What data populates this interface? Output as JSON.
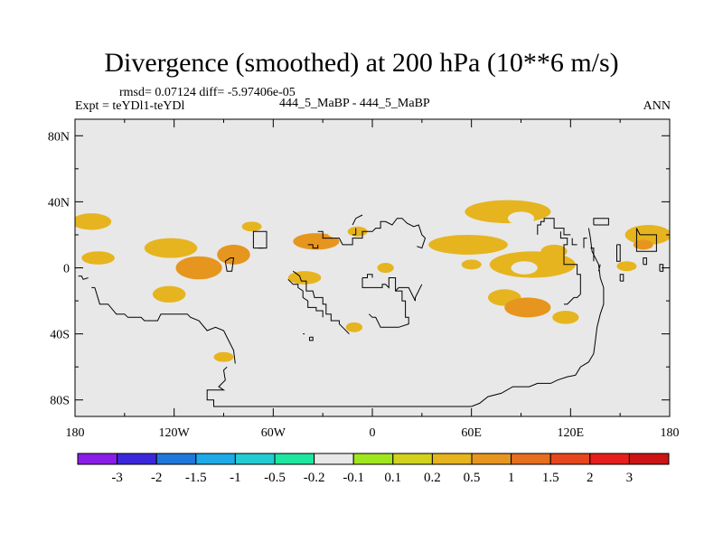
{
  "chart_data": {
    "type": "heatmap",
    "title": "Divergence (smoothed) at 200 hPa (10**6 m/s)",
    "stats_text": "rmsd= 0.07124 diff= -5.97406e-05",
    "experiment_label": "Expt = teYDl1-teYDl",
    "difference_label": "444_5_MaBP - 444_5_MaBP",
    "season_label": "ANN",
    "xlim": [
      -180,
      180
    ],
    "ylim": [
      -90,
      90
    ],
    "x_ticks": [
      {
        "value": -180,
        "label": "180"
      },
      {
        "value": -120,
        "label": "120W"
      },
      {
        "value": -60,
        "label": "60W"
      },
      {
        "value": 0,
        "label": "0"
      },
      {
        "value": 60,
        "label": "60E"
      },
      {
        "value": 120,
        "label": "120E"
      },
      {
        "value": 180,
        "label": "180"
      }
    ],
    "y_ticks": [
      {
        "value": 80,
        "label": "80N"
      },
      {
        "value": 40,
        "label": "40N"
      },
      {
        "value": 0,
        "label": "0"
      },
      {
        "value": -40,
        "label": "40S"
      },
      {
        "value": -80,
        "label": "80S"
      }
    ],
    "colorbar": {
      "labels": [
        "-3",
        "-2",
        "-1.5",
        "-1",
        "-0.5",
        "-0.2",
        "-0.1",
        "0.1",
        "0.2",
        "0.5",
        "1",
        "1.5",
        "2",
        "3"
      ],
      "colors": [
        "#8a1ee6",
        "#3c28dc",
        "#1e78dc",
        "#1eaae6",
        "#22ccd2",
        "#1ee6a0",
        "#e8e8e8",
        "#a0e61e",
        "#d2d21e",
        "#e6b41e",
        "#e6961e",
        "#e66e1e",
        "#e6461e",
        "#e61e1e",
        "#cc1414"
      ]
    },
    "background_color": "#e8e8e8",
    "anomalies": [
      {
        "lon": -170,
        "lat": 28,
        "rx": 12,
        "ry": 5,
        "value": 0.3
      },
      {
        "lon": -166,
        "lat": 6,
        "rx": 10,
        "ry": 4,
        "value": 0.3
      },
      {
        "lon": -163,
        "lat": 14,
        "rx": 6,
        "ry": 3,
        "value": -0.15
      },
      {
        "lon": -146,
        "lat": 26,
        "rx": 4,
        "ry": 3,
        "value": -0.15
      },
      {
        "lon": -122,
        "lat": 12,
        "rx": 16,
        "ry": 6,
        "value": 0.3
      },
      {
        "lon": -105,
        "lat": 0,
        "rx": 14,
        "ry": 7,
        "value": 0.6
      },
      {
        "lon": -123,
        "lat": -16,
        "rx": 10,
        "ry": 5,
        "value": 0.3
      },
      {
        "lon": -90,
        "lat": 28,
        "rx": 16,
        "ry": 6,
        "value": -0.15
      },
      {
        "lon": -84,
        "lat": 8,
        "rx": 10,
        "ry": 6,
        "value": 0.6
      },
      {
        "lon": -73,
        "lat": 25,
        "rx": 6,
        "ry": 3,
        "value": 0.3
      },
      {
        "lon": -34,
        "lat": 16,
        "rx": 14,
        "ry": 5,
        "value": 0.6
      },
      {
        "lon": -53,
        "lat": 10,
        "rx": 6,
        "ry": 4,
        "value": -0.15
      },
      {
        "lon": -41,
        "lat": -6,
        "rx": 10,
        "ry": 4,
        "value": 0.3
      },
      {
        "lon": -34,
        "lat": -17,
        "rx": 14,
        "ry": 5,
        "value": -0.15
      },
      {
        "lon": -15,
        "lat": -26,
        "rx": 12,
        "ry": 5,
        "value": -0.15
      },
      {
        "lon": -21,
        "lat": 21,
        "rx": 6,
        "ry": 3,
        "value": -0.15
      },
      {
        "lon": -9,
        "lat": 22,
        "rx": 6,
        "ry": 3,
        "value": 0.3
      },
      {
        "lon": 8,
        "lat": 0,
        "rx": 5,
        "ry": 3,
        "value": 0.3
      },
      {
        "lon": 31,
        "lat": -10,
        "rx": 8,
        "ry": 4,
        "value": -0.15
      },
      {
        "lon": 58,
        "lat": 14,
        "rx": 24,
        "ry": 6,
        "value": 0.3
      },
      {
        "lon": 82,
        "lat": 34,
        "rx": 26,
        "ry": 7,
        "value": 0.3
      },
      {
        "lon": 90,
        "lat": 30,
        "rx": 8,
        "ry": 4,
        "value": -0.15
      },
      {
        "lon": 97,
        "lat": 2,
        "rx": 26,
        "ry": 8,
        "value": 0.3
      },
      {
        "lon": 92,
        "lat": 0,
        "rx": 8,
        "ry": 4,
        "value": -0.15
      },
      {
        "lon": 110,
        "lat": 10,
        "rx": 8,
        "ry": 4,
        "value": 0.3
      },
      {
        "lon": 60,
        "lat": 2,
        "rx": 6,
        "ry": 3,
        "value": 0.3
      },
      {
        "lon": 80,
        "lat": -18,
        "rx": 10,
        "ry": 5,
        "value": 0.3
      },
      {
        "lon": 94,
        "lat": -24,
        "rx": 14,
        "ry": 6,
        "value": 0.6
      },
      {
        "lon": 115,
        "lat": -18,
        "rx": 10,
        "ry": 5,
        "value": -0.15
      },
      {
        "lon": 117,
        "lat": -30,
        "rx": 8,
        "ry": 4,
        "value": 0.3
      },
      {
        "lon": 167,
        "lat": 20,
        "rx": 14,
        "ry": 6,
        "value": 0.3
      },
      {
        "lon": 164,
        "lat": 14,
        "rx": 6,
        "ry": 3,
        "value": 0.6
      },
      {
        "lon": 154,
        "lat": 1,
        "rx": 6,
        "ry": 3,
        "value": 0.3
      },
      {
        "lon": 175,
        "lat": 2,
        "rx": 5,
        "ry": 3,
        "value": -0.15
      },
      {
        "lon": -95,
        "lat": -30,
        "rx": 6,
        "ry": 4,
        "value": -0.15
      },
      {
        "lon": -90,
        "lat": -54,
        "rx": 6,
        "ry": 3,
        "value": 0.3
      },
      {
        "lon": -11,
        "lat": -36,
        "rx": 5,
        "ry": 3,
        "value": 0.3
      }
    ],
    "coastlines": [
      [
        [
          -168,
          -12
        ],
        [
          -165,
          -22
        ],
        [
          -160,
          -22
        ],
        [
          -155,
          -28
        ],
        [
          -150,
          -28
        ],
        [
          -148,
          -30
        ],
        [
          -140,
          -30
        ],
        [
          -138,
          -32
        ],
        [
          -130,
          -32
        ],
        [
          -128,
          -28
        ],
        [
          -112,
          -28
        ],
        [
          -110,
          -30
        ],
        [
          -105,
          -32
        ],
        [
          -100,
          -38
        ],
        [
          -95,
          -36
        ],
        [
          -90,
          -38
        ],
        [
          -86,
          -46
        ],
        [
          -84,
          -50
        ],
        [
          -83,
          -58
        ]
      ],
      [
        [
          -178,
          -5
        ],
        [
          -176,
          -5
        ],
        [
          -175,
          -7
        ],
        [
          -172,
          -6
        ]
      ],
      [
        [
          -170,
          -12
        ],
        [
          -168,
          -12
        ]
      ],
      [
        [
          -88,
          -60
        ],
        [
          -90,
          -62
        ],
        [
          -89,
          -68
        ],
        [
          -93,
          -72
        ],
        [
          -90,
          -74
        ],
        [
          -100,
          -74
        ],
        [
          -100,
          -80
        ],
        [
          -96,
          -80
        ],
        [
          -96,
          -84
        ],
        [
          -75,
          -84
        ],
        [
          -60,
          -84
        ],
        [
          -30,
          -84
        ],
        [
          0,
          -84
        ],
        [
          30,
          -84
        ],
        [
          60,
          -84
        ],
        [
          65,
          -82
        ],
        [
          70,
          -78
        ],
        [
          78,
          -76
        ],
        [
          85,
          -72
        ],
        [
          95,
          -72
        ],
        [
          100,
          -70
        ],
        [
          108,
          -70
        ],
        [
          112,
          -68
        ],
        [
          118,
          -66
        ],
        [
          123,
          -65
        ],
        [
          126,
          -60
        ],
        [
          131,
          -57
        ],
        [
          134,
          -52
        ],
        [
          135,
          -44
        ],
        [
          136,
          -36
        ],
        [
          138,
          -28
        ],
        [
          140,
          -22
        ],
        [
          140,
          -12
        ],
        [
          138,
          -6
        ],
        [
          137,
          2
        ],
        [
          136,
          4
        ],
        [
          133,
          10
        ],
        [
          132,
          18
        ],
        [
          131,
          24
        ]
      ],
      [
        [
          -89,
          4
        ],
        [
          -88,
          -2
        ],
        [
          -85,
          -2
        ],
        [
          -84,
          6
        ],
        [
          -86,
          6
        ],
        [
          -89,
          4
        ]
      ],
      [
        [
          -72,
          12
        ],
        [
          -72,
          22
        ],
        [
          -64,
          22
        ],
        [
          -64,
          12
        ],
        [
          -72,
          12
        ]
      ],
      [
        [
          -69,
          12
        ],
        [
          -66,
          12
        ]
      ],
      [
        [
          -39,
          14
        ],
        [
          -36,
          14
        ],
        [
          -36,
          12
        ],
        [
          -33,
          12
        ],
        [
          -33,
          14
        ]
      ],
      [
        [
          -33,
          22
        ],
        [
          -30,
          22
        ],
        [
          -30,
          18
        ],
        [
          -20,
          18
        ],
        [
          -18,
          14
        ],
        [
          -12,
          14
        ],
        [
          -12,
          18
        ],
        [
          -6,
          18
        ],
        [
          -6,
          22
        ],
        [
          0,
          22
        ],
        [
          2,
          24
        ],
        [
          5,
          24
        ],
        [
          5,
          28
        ],
        [
          8,
          28
        ],
        [
          12,
          26
        ],
        [
          15,
          30
        ],
        [
          18,
          30
        ],
        [
          21,
          27
        ],
        [
          25,
          25
        ],
        [
          28,
          26
        ],
        [
          30,
          20
        ],
        [
          32,
          18
        ],
        [
          30,
          12
        ],
        [
          27,
          13
        ]
      ],
      [
        [
          -12,
          20
        ],
        [
          -10,
          20
        ],
        [
          -10,
          24
        ]
      ],
      [
        [
          -12,
          26
        ],
        [
          -10,
          30
        ],
        [
          -6,
          32
        ]
      ],
      [
        [
          -48,
          -2
        ],
        [
          -44,
          -5
        ],
        [
          -43,
          -8
        ],
        [
          -40,
          -8
        ],
        [
          -40,
          -14
        ],
        [
          -36,
          -14
        ],
        [
          -35,
          -18
        ],
        [
          -30,
          -18
        ],
        [
          -30,
          -22
        ],
        [
          -28,
          -22
        ],
        [
          -28,
          -28
        ],
        [
          -25,
          -28
        ],
        [
          -25,
          -32
        ],
        [
          -20,
          -32
        ],
        [
          -20,
          -34
        ],
        [
          -18,
          -36
        ],
        [
          -14,
          -40
        ]
      ],
      [
        [
          -51,
          -7
        ],
        [
          -48,
          -10
        ],
        [
          -45,
          -10
        ],
        [
          -45,
          -12
        ],
        [
          -42,
          -14
        ],
        [
          -42,
          -18
        ],
        [
          -39,
          -20
        ],
        [
          -39,
          -24
        ],
        [
          -34,
          -24
        ],
        [
          -34,
          -26
        ],
        [
          -30,
          -26
        ],
        [
          -30,
          -30
        ]
      ],
      [
        [
          -38,
          -42
        ],
        [
          -36,
          -42
        ],
        [
          -36,
          -44
        ],
        [
          -38,
          -44
        ],
        [
          -38,
          -42
        ]
      ],
      [
        [
          -42,
          -40
        ],
        [
          -41,
          -40
        ]
      ],
      [
        [
          -6,
          -6
        ],
        [
          -6,
          -12
        ],
        [
          0,
          -12
        ],
        [
          2,
          -12
        ],
        [
          6,
          -12
        ],
        [
          6,
          -10
        ],
        [
          8,
          -10
        ],
        [
          10,
          -12
        ],
        [
          10,
          -6
        ],
        [
          14,
          -6
        ],
        [
          14,
          -14
        ],
        [
          18,
          -14
        ],
        [
          18,
          -20
        ],
        [
          20,
          -20
        ],
        [
          20,
          -30
        ],
        [
          22,
          -30
        ],
        [
          22,
          -34
        ],
        [
          16,
          -36
        ],
        [
          5,
          -36
        ],
        [
          2,
          -30
        ],
        [
          0,
          -30
        ],
        [
          -2,
          -28
        ]
      ],
      [
        [
          -6,
          -6
        ],
        [
          -3,
          -6
        ],
        [
          -3,
          -4
        ],
        [
          0,
          -4
        ],
        [
          0,
          -6
        ]
      ],
      [
        [
          14,
          -14
        ],
        [
          16,
          -12
        ],
        [
          22,
          -12
        ],
        [
          26,
          -20
        ],
        [
          26,
          -18
        ],
        [
          30,
          -10
        ]
      ],
      [
        [
          100,
          20
        ],
        [
          100,
          26
        ],
        [
          102,
          26
        ],
        [
          102,
          28
        ],
        [
          104,
          28
        ],
        [
          104,
          30
        ],
        [
          110,
          30
        ],
        [
          110,
          24
        ],
        [
          116,
          24
        ],
        [
          116,
          20
        ],
        [
          120,
          20
        ]
      ],
      [
        [
          120,
          2
        ],
        [
          116,
          2
        ],
        [
          116,
          14
        ],
        [
          118,
          14
        ],
        [
          118,
          18
        ],
        [
          114,
          18
        ],
        [
          114,
          22
        ]
      ],
      [
        [
          120,
          2
        ],
        [
          124,
          2
        ],
        [
          124,
          -4
        ],
        [
          126,
          -4
        ],
        [
          126,
          -16
        ],
        [
          124,
          -18
        ],
        [
          122,
          -18
        ],
        [
          120,
          -20
        ],
        [
          118,
          -22
        ],
        [
          116,
          -22
        ]
      ],
      [
        [
          121,
          18
        ],
        [
          121,
          14
        ],
        [
          124,
          14
        ]
      ],
      [
        [
          128,
          12
        ],
        [
          128,
          18
        ],
        [
          130,
          18
        ]
      ],
      [
        [
          132,
          12
        ],
        [
          134,
          12
        ],
        [
          134,
          4
        ]
      ],
      [
        [
          138,
          2
        ],
        [
          137,
          -2
        ]
      ],
      [
        [
          148,
          14
        ],
        [
          150,
          14
        ],
        [
          150,
          4
        ],
        [
          148,
          4
        ],
        [
          148,
          14
        ]
      ],
      [
        [
          150,
          -8
        ],
        [
          152,
          -8
        ],
        [
          152,
          -4
        ],
        [
          150,
          -4
        ],
        [
          150,
          -8
        ]
      ],
      [
        [
          160,
          16
        ],
        [
          160,
          10
        ],
        [
          172,
          10
        ],
        [
          172,
          20
        ],
        [
          162,
          20
        ],
        [
          160,
          24
        ],
        [
          160,
          16
        ]
      ],
      [
        [
          174,
          -2
        ],
        [
          176,
          -2
        ],
        [
          176,
          2
        ],
        [
          174,
          2
        ],
        [
          174,
          -2
        ]
      ],
      [
        [
          134,
          26
        ],
        [
          134,
          30
        ],
        [
          143,
          30
        ],
        [
          143,
          26
        ],
        [
          134,
          26
        ]
      ],
      [
        [
          164,
          2
        ],
        [
          166,
          2
        ],
        [
          166,
          6
        ],
        [
          164,
          6
        ],
        [
          164,
          2
        ]
      ]
    ]
  }
}
